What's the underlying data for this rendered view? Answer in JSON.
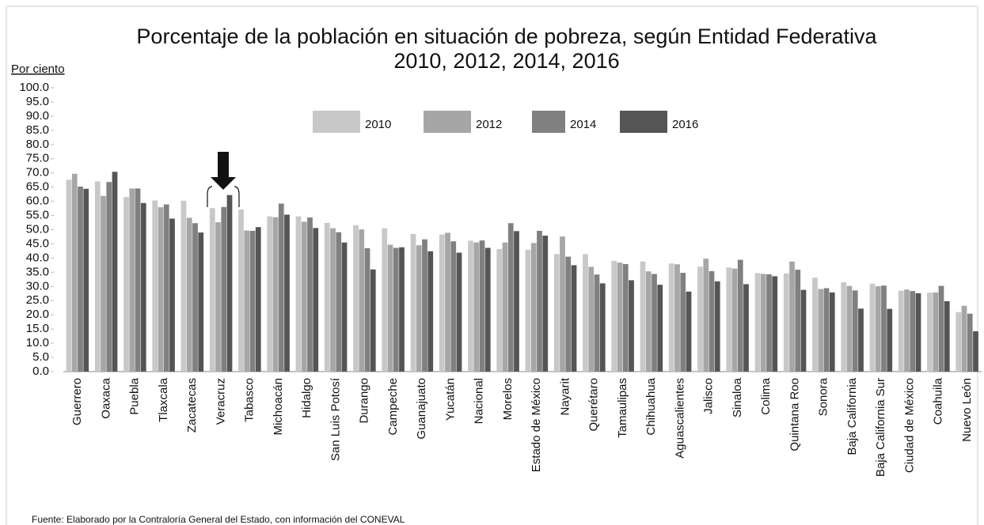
{
  "chart_data": {
    "type": "bar",
    "title": "Porcentaje de la población en situación de pobreza, según Entidad Federativa",
    "subtitle": "2010, 2012, 2014, 2016",
    "y_label": "Por ciento",
    "source": "Fuente: Elaborado por la Contraloría General del Estado, con información del CONEVAL",
    "categories": [
      "Guerrero",
      "Oaxaca",
      "Puebla",
      "Tlaxcala",
      "Zacatecas",
      "Veracruz",
      "Tabasco",
      "Michoacán",
      "Hidalgo",
      "San Luis Potosí",
      "Durango",
      "Campeche",
      "Guanajuato",
      "Yucatán",
      "Nacional",
      "Morelos",
      "Estado de México",
      "Nayarit",
      "Querétaro",
      "Tamaulipas",
      "Chihuahua",
      "Aguascalientes",
      "Jalisco",
      "Sinaloa",
      "Colima",
      "Quintana Roo",
      "Sonora",
      "Baja California",
      "Baja California Sur",
      "Ciudad de México",
      "Coahuila",
      "Nuevo León"
    ],
    "series": [
      {
        "name": "2010",
        "color": "#c8c8c8",
        "values": [
          67.6,
          67.0,
          61.5,
          60.3,
          60.2,
          57.6,
          57.1,
          54.7,
          54.7,
          52.4,
          51.6,
          50.5,
          48.5,
          48.3,
          46.1,
          43.2,
          42.9,
          41.4,
          41.4,
          39.0,
          38.8,
          38.1,
          37.0,
          36.7,
          34.7,
          34.6,
          33.1,
          31.5,
          31.0,
          28.5,
          27.8,
          21.0
        ]
      },
      {
        "name": "2012",
        "color": "#a6a6a6",
        "values": [
          69.7,
          61.9,
          64.5,
          57.9,
          54.2,
          52.6,
          49.7,
          54.4,
          52.8,
          50.5,
          50.1,
          44.7,
          44.5,
          48.9,
          45.5,
          45.5,
          45.3,
          47.6,
          36.9,
          38.4,
          35.3,
          37.8,
          39.8,
          36.3,
          34.4,
          38.8,
          29.1,
          30.2,
          30.1,
          28.9,
          27.9,
          23.2
        ]
      },
      {
        "name": "2014",
        "color": "#808080",
        "values": [
          65.2,
          66.8,
          64.5,
          58.9,
          52.3,
          58.0,
          49.6,
          59.2,
          54.3,
          49.1,
          43.5,
          43.6,
          46.6,
          45.9,
          46.2,
          52.3,
          49.6,
          40.5,
          34.2,
          37.9,
          34.4,
          34.8,
          35.4,
          39.4,
          34.3,
          35.9,
          29.4,
          28.6,
          30.3,
          28.4,
          30.2,
          20.4
        ]
      },
      {
        "name": "2016",
        "color": "#555555",
        "values": [
          64.4,
          70.4,
          59.4,
          53.9,
          49.0,
          62.2,
          50.9,
          55.3,
          50.6,
          45.5,
          36.0,
          43.8,
          42.4,
          41.9,
          43.6,
          49.5,
          47.9,
          37.5,
          31.1,
          32.2,
          30.6,
          28.2,
          31.8,
          30.8,
          33.6,
          28.8,
          27.9,
          22.2,
          22.1,
          27.6,
          24.8,
          14.2
        ]
      }
    ],
    "ylim": [
      0,
      100
    ],
    "yticks": [
      {
        "value": 0,
        "label": "0.0"
      },
      {
        "value": 5,
        "label": "5.0"
      },
      {
        "value": 10,
        "label": "10.0"
      },
      {
        "value": 15,
        "label": "15.0"
      },
      {
        "value": 20,
        "label": "20.0"
      },
      {
        "value": 25,
        "label": "25.0"
      },
      {
        "value": 30,
        "label": "30.0"
      },
      {
        "value": 35,
        "label": "35.0"
      },
      {
        "value": 40,
        "label": "40.0"
      },
      {
        "value": 45,
        "label": "45.0"
      },
      {
        "value": 50,
        "label": "50.0"
      },
      {
        "value": 55,
        "label": "55.0"
      },
      {
        "value": 60,
        "label": "60.0"
      },
      {
        "value": 65,
        "label": "65.0"
      },
      {
        "value": 70,
        "label": "70.0"
      },
      {
        "value": 75,
        "label": "75.0"
      },
      {
        "value": 80,
        "label": "80.0"
      },
      {
        "value": 85,
        "label": "85.0"
      },
      {
        "value": 90,
        "label": "90.0"
      },
      {
        "value": 95,
        "label": "95.0"
      },
      {
        "value": 100,
        "label": "100.0"
      }
    ],
    "grid": false
  }
}
